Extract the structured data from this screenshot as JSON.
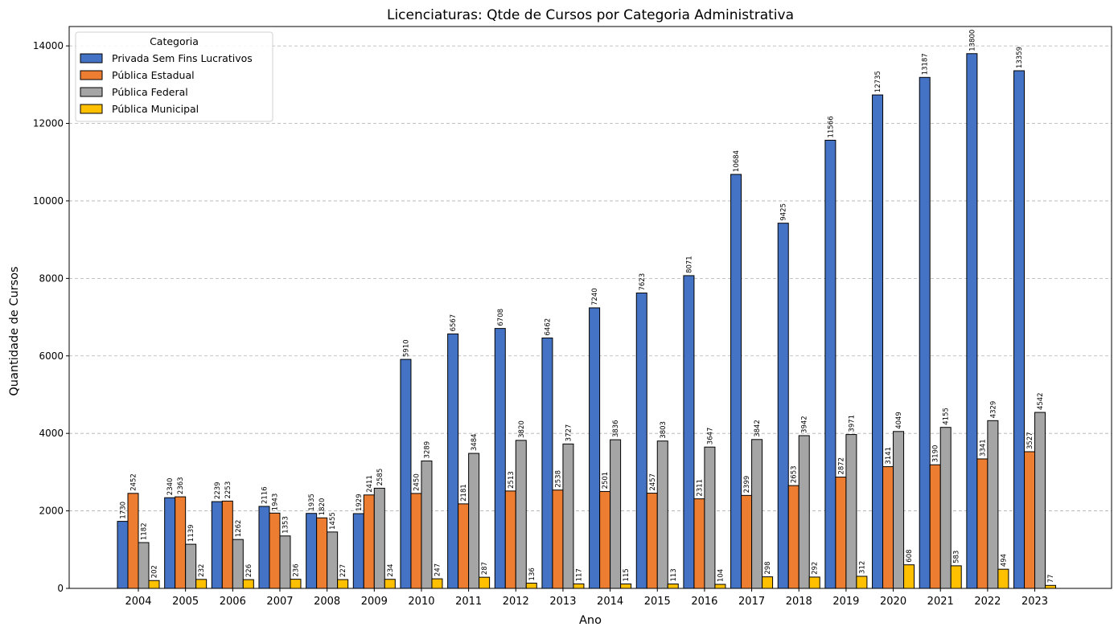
{
  "chart_data": {
    "type": "bar",
    "title": "Licenciaturas: Qtde de Cursos por Categoria Administrativa",
    "xlabel": "Ano",
    "ylabel": "Quantidade de Cursos",
    "ylim": [
      0,
      14500
    ],
    "yticks": [
      0,
      2000,
      4000,
      6000,
      8000,
      10000,
      12000,
      14000
    ],
    "grid": "y, dashed",
    "legend": {
      "title": "Categoria",
      "placement": "top-left"
    },
    "categories": [
      "2004",
      "2005",
      "2006",
      "2007",
      "2008",
      "2009",
      "2010",
      "2011",
      "2012",
      "2013",
      "2014",
      "2015",
      "2016",
      "2017",
      "2018",
      "2019",
      "2020",
      "2021",
      "2022",
      "2023"
    ],
    "series": [
      {
        "name": "Privada Sem Fins Lucrativos",
        "color": "#4472C4",
        "values": [
          1730,
          2340,
          2239,
          2116,
          1935,
          1929,
          5910,
          6567,
          6708,
          6462,
          7240,
          7623,
          8071,
          10684,
          9425,
          11566,
          12735,
          13187,
          13800,
          13359
        ]
      },
      {
        "name": "Pública Estadual",
        "color": "#ED7D31",
        "values": [
          2452,
          2363,
          2253,
          1943,
          1820,
          2411,
          2450,
          2181,
          2513,
          2538,
          2501,
          2457,
          2311,
          2399,
          2653,
          2872,
          3141,
          3190,
          3341,
          3527
        ]
      },
      {
        "name": "Pública Federal",
        "color": "#A5A5A5",
        "values": [
          1182,
          1139,
          1262,
          1353,
          1455,
          2585,
          3289,
          3484,
          3820,
          3727,
          3836,
          3803,
          3647,
          3842,
          3942,
          3971,
          4049,
          4155,
          4329,
          4542
        ]
      },
      {
        "name": "Pública Municipal",
        "color": "#FFC000",
        "values": [
          202,
          232,
          226,
          236,
          227,
          234,
          247,
          287,
          136,
          117,
          115,
          113,
          104,
          298,
          292,
          312,
          608,
          583,
          494,
          77
        ]
      }
    ]
  }
}
